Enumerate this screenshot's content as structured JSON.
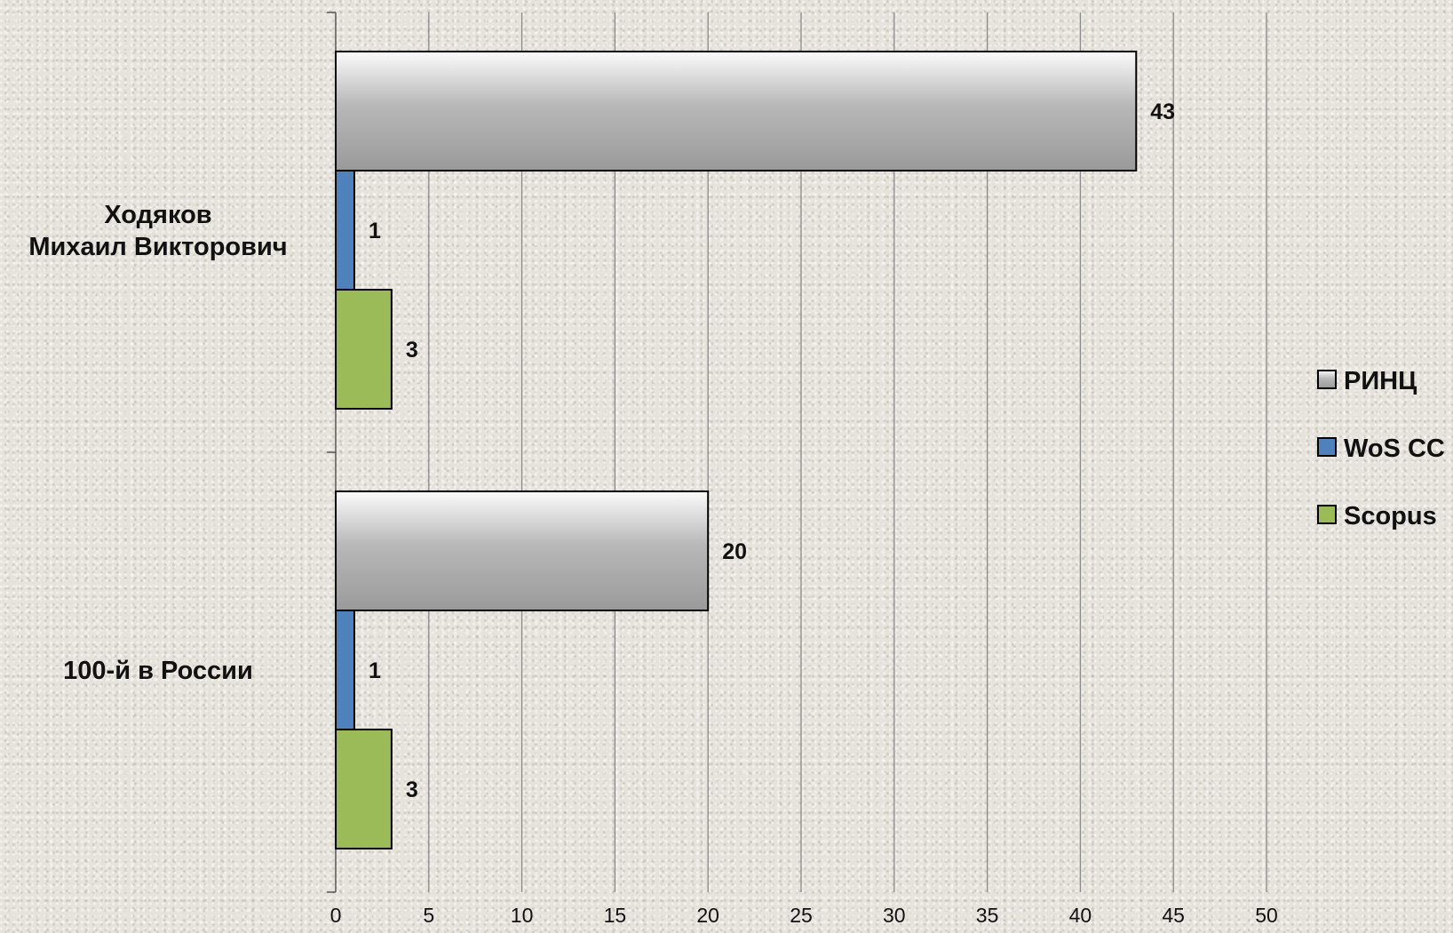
{
  "chart_data": {
    "type": "bar",
    "orientation": "horizontal",
    "categories": [
      "Ходяков\nМихаил Викторович",
      "100-й в России"
    ],
    "series": [
      {
        "name": "РИНЦ",
        "values": [
          43,
          20
        ],
        "color": "#a9a9a9"
      },
      {
        "name": "WoS CC",
        "values": [
          1,
          1
        ],
        "color": "#4f81bd"
      },
      {
        "name": "Scopus",
        "values": [
          3,
          3
        ],
        "color": "#9bbb59"
      }
    ],
    "xlim": [
      0,
      50
    ],
    "xticks": [
      0,
      5,
      10,
      15,
      20,
      25,
      30,
      35,
      40,
      45,
      50
    ],
    "grid": "vertical",
    "legend_position": "right"
  }
}
